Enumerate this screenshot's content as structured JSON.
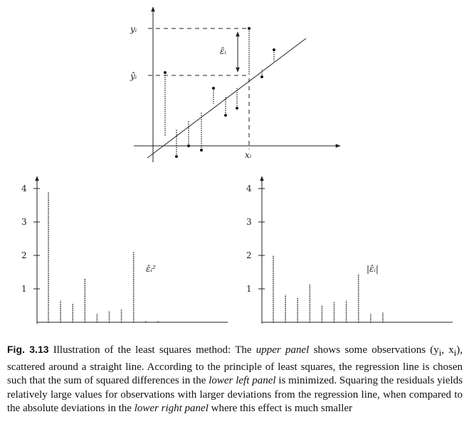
{
  "figure": {
    "top_panel": {
      "labels": {
        "y_obs": "yᵢ",
        "y_hat": "ŷᵢ",
        "residual": "ε̂ᵢ",
        "x": "xᵢ"
      },
      "observations": [
        {
          "x": 232,
          "y_obs": 102,
          "y_fit": 192
        },
        {
          "x": 248,
          "y_obs": 220,
          "y_fit": 181
        },
        {
          "x": 265,
          "y_obs": 205,
          "y_fit": 170
        },
        {
          "x": 283,
          "y_obs": 211,
          "y_fit": 158
        },
        {
          "x": 300,
          "y_obs": 124,
          "y_fit": 146
        },
        {
          "x": 317,
          "y_obs": 162,
          "y_fit": 135
        },
        {
          "x": 333,
          "y_obs": 152,
          "y_fit": 124
        },
        {
          "x": 350,
          "y_obs": 40,
          "y_fit": 106
        },
        {
          "x": 368,
          "y_obs": 108,
          "y_fit": 98
        },
        {
          "x": 385,
          "y_obs": 70,
          "y_fit": 86
        }
      ]
    },
    "lower_left": {
      "label": "ε̂ᵢ²",
      "ticks": [
        "1",
        "2",
        "3",
        "4"
      ],
      "values": [
        3.9,
        0.65,
        0.55,
        1.3,
        0.25,
        0.35,
        0.4,
        2.1,
        0.05,
        0.05
      ]
    },
    "lower_right": {
      "label": "|ε̂ᵢ|",
      "ticks": [
        "1",
        "2",
        "3",
        "4"
      ],
      "values": [
        2.0,
        0.82,
        0.75,
        1.15,
        0.5,
        0.6,
        0.65,
        1.45,
        0.25,
        0.3
      ]
    }
  },
  "caption": {
    "fig_label": "Fig. 3.13",
    "t1": " Illustration of the least squares method: The ",
    "e1": "upper panel",
    "t2": " shows some observations (y",
    "t3": ", x",
    "t4": "), scattered around a straight line. According to the principle of least squares, the regression line is chosen such that the sum of squared differences in the ",
    "e2": "lower left panel",
    "t5": " is minimized. Squaring the residuals yields relatively large values for observations with larger deviations from the regression line, when compared to the absolute deviations in the ",
    "e3": "lower right panel",
    "t6": " where this effect is much smaller",
    "sub_i": "i"
  }
}
